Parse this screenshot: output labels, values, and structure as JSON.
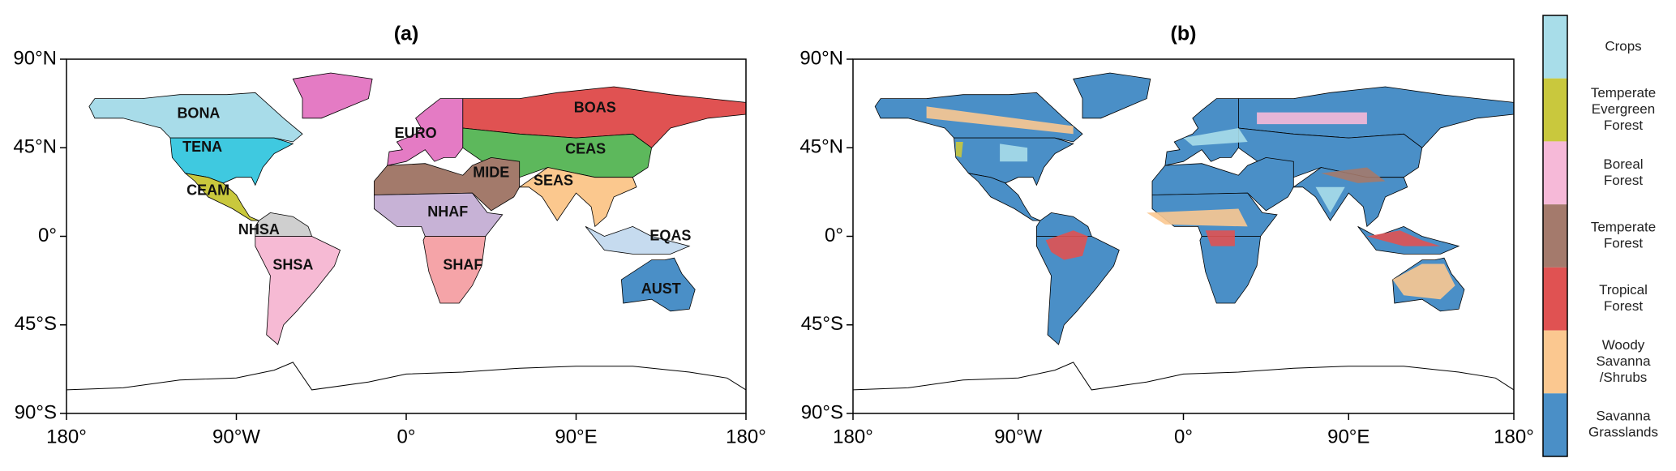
{
  "axes": {
    "xlim": [
      -180,
      180
    ],
    "ylim": [
      -90,
      90
    ],
    "xticks": [
      {
        "value": -180,
        "label": "180°"
      },
      {
        "value": -90,
        "label": "90°W"
      },
      {
        "value": 0,
        "label": "0°"
      },
      {
        "value": 90,
        "label": "90°E"
      },
      {
        "value": 180,
        "label": "180°"
      }
    ],
    "yticks": [
      {
        "value": 90,
        "label": "90°N"
      },
      {
        "value": 45,
        "label": "45°N"
      },
      {
        "value": 0,
        "label": "0°"
      },
      {
        "value": -45,
        "label": "45°S"
      },
      {
        "value": -90,
        "label": "90°S"
      }
    ]
  },
  "panels": [
    {
      "title": "(a)",
      "regions": [
        {
          "name": "BONA",
          "color": "#a8dce9"
        },
        {
          "name": "TENA",
          "color": "#3fc9e0"
        },
        {
          "name": "CEAM",
          "color": "#c9c83d"
        },
        {
          "name": "NHSA",
          "color": "#cfcfcf"
        },
        {
          "name": "SHSA",
          "color": "#f6bad4"
        },
        {
          "name": "EURO",
          "color": "#e47bc4"
        },
        {
          "name": "BOAS",
          "color": "#e05252"
        },
        {
          "name": "CEAS",
          "color": "#5db85c"
        },
        {
          "name": "MIDE",
          "color": "#a37a6b"
        },
        {
          "name": "NHAF",
          "color": "#c7b2d6"
        },
        {
          "name": "SHAF",
          "color": "#f5a4a8"
        },
        {
          "name": "SEAS",
          "color": "#fbc88e"
        },
        {
          "name": "EQAS",
          "color": "#c6dbef"
        },
        {
          "name": "AUST",
          "color": "#4a8fc7"
        }
      ]
    },
    {
      "title": "(b)"
    }
  ],
  "legend": {
    "items": [
      {
        "lines": [
          "Crops"
        ],
        "color": "#a8dde9"
      },
      {
        "lines": [
          "Temperate",
          "Evergreen",
          "Forest"
        ],
        "color": "#c9c83d"
      },
      {
        "lines": [
          "Boreal",
          "Forest"
        ],
        "color": "#f6b9d8"
      },
      {
        "lines": [
          "Temperate",
          "Forest"
        ],
        "color": "#a47a6c"
      },
      {
        "lines": [
          "Tropical",
          "Forest"
        ],
        "color": "#e05252"
      },
      {
        "lines": [
          "Woody",
          "Savanna",
          "/Shrubs"
        ],
        "color": "#fbc890"
      },
      {
        "lines": [
          "Savanna",
          "Grasslands"
        ],
        "color": "#4a8fc7"
      }
    ]
  }
}
